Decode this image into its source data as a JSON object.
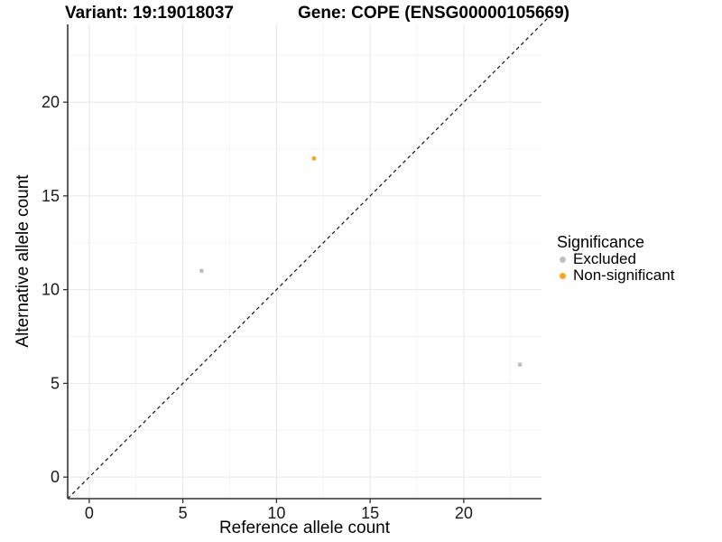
{
  "chart_data": {
    "type": "scatter",
    "titles": {
      "variant": "Variant: 19:19018037",
      "gene": "Gene: COPE (ENSG00000105669)"
    },
    "xlabel": "Reference allele count",
    "ylabel": "Alternative allele count",
    "xlim": [
      -1.15,
      24.15
    ],
    "ylim": [
      -1.15,
      24.15
    ],
    "x_ticks": [
      0,
      5,
      10,
      15,
      20
    ],
    "y_ticks": [
      0,
      5,
      10,
      15,
      20
    ],
    "x_minor": [
      2.5,
      7.5,
      12.5,
      17.5,
      22.5
    ],
    "y_minor": [
      2.5,
      7.5,
      12.5,
      17.5,
      22.5
    ],
    "grid": true,
    "legend": {
      "title": "Significance",
      "position": "right"
    },
    "series": [
      {
        "name": "Excluded",
        "color": "#BEBEBE",
        "points": [
          [
            6,
            11
          ],
          [
            23,
            6
          ]
        ]
      },
      {
        "name": "Non-significant",
        "color": "#F9A320",
        "points": [
          [
            12,
            17
          ]
        ]
      }
    ],
    "reference_line": {
      "type": "identity y=x",
      "style": "dashed",
      "color": "#111111"
    },
    "colors": {
      "grid_major": "#E8E8E8",
      "grid_minor": "#F4F4F4",
      "axis_line": "#333333",
      "tick_text": "#1a1a1a",
      "background": "#FFFFFF"
    }
  }
}
